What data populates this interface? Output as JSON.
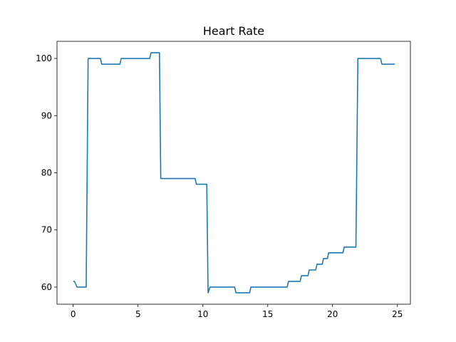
{
  "chart_data": {
    "type": "line",
    "title": "Heart Rate",
    "xlabel": "",
    "ylabel": "",
    "xlim": [
      -1.25,
      26.0
    ],
    "ylim": [
      57.0,
      103.0
    ],
    "xticks": [
      0,
      5,
      10,
      15,
      20,
      25
    ],
    "yticks": [
      60,
      70,
      80,
      90,
      100
    ],
    "grid": false,
    "series": [
      {
        "color": "#1f77b4",
        "points": [
          [
            0.0,
            61
          ],
          [
            0.1,
            61
          ],
          [
            0.3,
            60
          ],
          [
            0.6,
            60
          ],
          [
            1.0,
            60
          ],
          [
            1.15,
            100
          ],
          [
            1.5,
            100
          ],
          [
            2.1,
            100
          ],
          [
            2.2,
            99
          ],
          [
            2.8,
            99
          ],
          [
            3.6,
            99
          ],
          [
            3.7,
            100
          ],
          [
            4.5,
            100
          ],
          [
            5.9,
            100
          ],
          [
            6.0,
            101
          ],
          [
            6.4,
            101
          ],
          [
            6.65,
            101
          ],
          [
            6.75,
            79
          ],
          [
            7.5,
            79
          ],
          [
            9.4,
            79
          ],
          [
            9.5,
            78
          ],
          [
            9.8,
            78
          ],
          [
            10.3,
            78
          ],
          [
            10.4,
            59
          ],
          [
            10.55,
            60
          ],
          [
            11.5,
            60
          ],
          [
            12.45,
            60
          ],
          [
            12.55,
            59
          ],
          [
            13.6,
            59
          ],
          [
            13.7,
            60
          ],
          [
            15.0,
            60
          ],
          [
            16.5,
            60
          ],
          [
            16.6,
            61
          ],
          [
            17.5,
            61
          ],
          [
            17.6,
            62
          ],
          [
            18.1,
            62
          ],
          [
            18.2,
            63
          ],
          [
            18.7,
            63
          ],
          [
            18.8,
            64
          ],
          [
            19.2,
            64
          ],
          [
            19.3,
            65
          ],
          [
            19.6,
            65
          ],
          [
            19.7,
            66
          ],
          [
            20.8,
            66
          ],
          [
            20.9,
            67
          ],
          [
            21.8,
            67
          ],
          [
            21.95,
            100
          ],
          [
            23.0,
            100
          ],
          [
            23.7,
            100
          ],
          [
            23.8,
            99
          ],
          [
            24.4,
            99
          ],
          [
            24.8,
            99
          ]
        ]
      }
    ]
  }
}
